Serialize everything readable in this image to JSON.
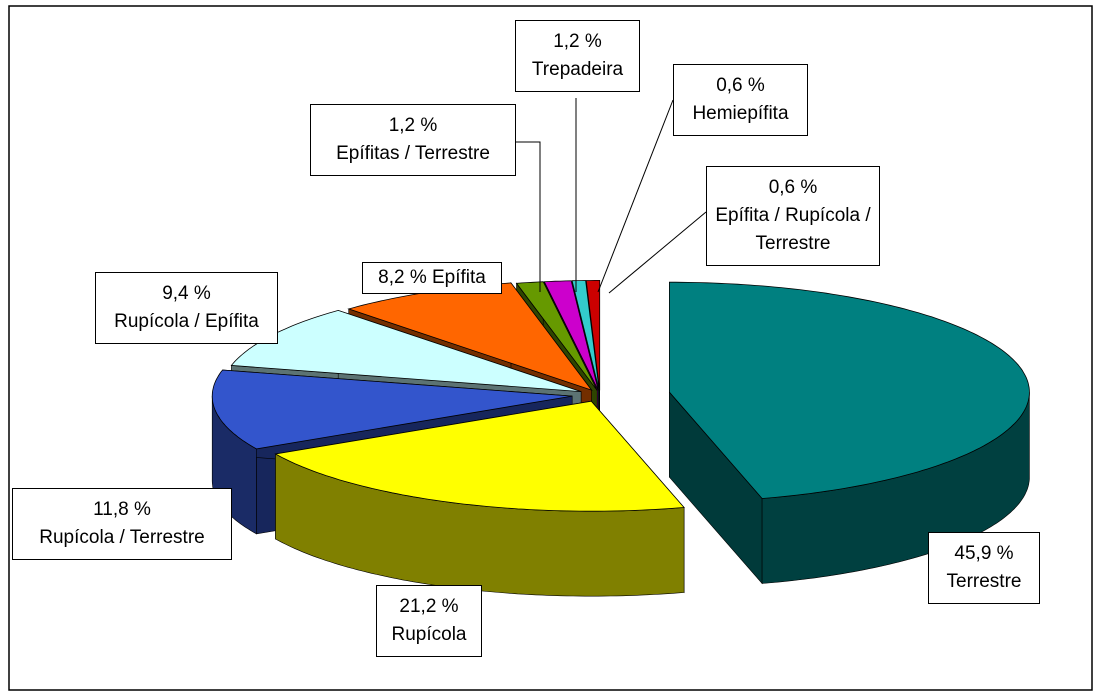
{
  "chart_data": {
    "type": "pie3d",
    "categories": [
      "Terrestre",
      "Rupícola",
      "Rupícola / Terrestre",
      "Rupícola / Epífita",
      "Epífita",
      "Epífitas / Terrestre",
      "Trepadeira",
      "Hemiepífita",
      "Epífita / Rupícola / Terrestre"
    ],
    "values": [
      45.9,
      21.2,
      11.8,
      9.4,
      8.2,
      1.2,
      1.2,
      0.6,
      0.6
    ],
    "value_labels": [
      "45,9 %",
      "21,2 %",
      "11,8 %",
      "9,4 %",
      "8,2 %",
      "1,2 %",
      "1,2 %",
      "0,6 %",
      "0,6 %"
    ],
    "colors": [
      "#008080",
      "#ffff00",
      "#3355cc",
      "#ccffff",
      "#ff6600",
      "#669900",
      "#cc00cc",
      "#33cccc",
      "#cc0000"
    ]
  }
}
